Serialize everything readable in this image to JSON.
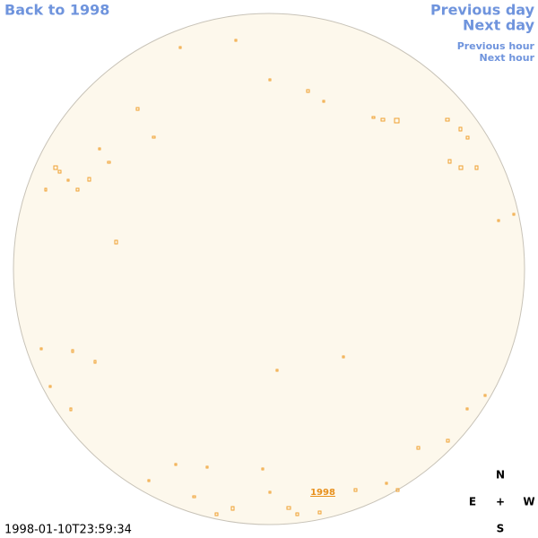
{
  "navigation": {
    "back": "Back to 1998",
    "previous_day": "Previous day",
    "next_day": "Next day",
    "previous_hour": "Previous hour",
    "next_hour": "Next hour"
  },
  "disk_label": "1998",
  "timestamp": "1998-01-10T23:59:34",
  "compass": {
    "north": "N",
    "east": "E",
    "center": "+",
    "west": "W",
    "south": "S"
  }
}
